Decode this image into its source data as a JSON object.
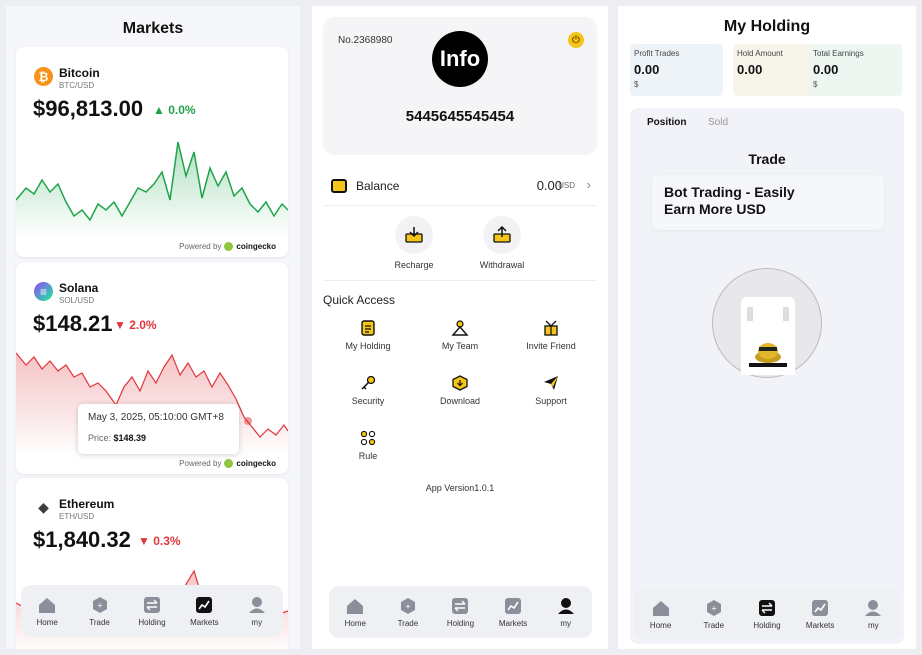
{
  "markets": {
    "title": "Markets",
    "coins": [
      {
        "name": "Bitcoin",
        "pair": "BTC/USD",
        "price": "$96,813.00",
        "change": "0.0%",
        "direction": "up",
        "color": "#f7931a",
        "icon": "bitcoin-icon",
        "glyph": "₿"
      },
      {
        "name": "Solana",
        "pair": "SOL/USD",
        "price": "$148.21",
        "change": "2.0%",
        "direction": "down",
        "color": "#9945ff",
        "icon": "solana-icon",
        "glyph": "≡"
      },
      {
        "name": "Ethereum",
        "pair": "ETH/USD",
        "price": "$1,840.32",
        "change": "0.3%",
        "direction": "down",
        "color": "#627eea",
        "icon": "ethereum-icon",
        "glyph": "◆"
      }
    ],
    "powered_by": "Powered by",
    "provider": "coingecko",
    "tooltip": {
      "date": "May 3, 2025, 05:10:00 GMT+8",
      "price_label": "Price:",
      "price": "$148.39"
    }
  },
  "nav": {
    "items": [
      "Home",
      "Trade",
      "Holding",
      "Markets",
      "my"
    ]
  },
  "profile": {
    "account_no": "No.2368980",
    "badge": "Info",
    "uid": "5445645545454",
    "balance_label": "Balance",
    "balance_value": "0.00",
    "balance_unit": "USD",
    "actions": [
      "Recharge",
      "Withdrawal"
    ],
    "quick_access_title": "Quick Access",
    "quick_access": [
      "My Holding",
      "My Team",
      "Invite Friend",
      "Security",
      "Download",
      "Support",
      "Rule"
    ],
    "version_label": "App Version",
    "version": "1.0.1"
  },
  "holding": {
    "title": "My Holding",
    "stats": [
      {
        "label": "Profit Trades",
        "value": "0.00",
        "unit": "$",
        "bg": "#eef3f8"
      },
      {
        "label": "Hold Amount",
        "value": "0.00",
        "unit": "",
        "bg": "#f7f5ea"
      },
      {
        "label": "Total Earnings",
        "value": "0.00",
        "unit": "$",
        "bg": "#eef6f1"
      }
    ],
    "tabs": [
      "Position",
      "Sold"
    ],
    "trade_title": "Trade",
    "bot_text_1": "Bot Trading - Easily",
    "bot_text_2": "Earn More USD"
  },
  "colors": {
    "up": "#1fa34a",
    "down": "#e0353b",
    "accent": "#f5c518"
  }
}
